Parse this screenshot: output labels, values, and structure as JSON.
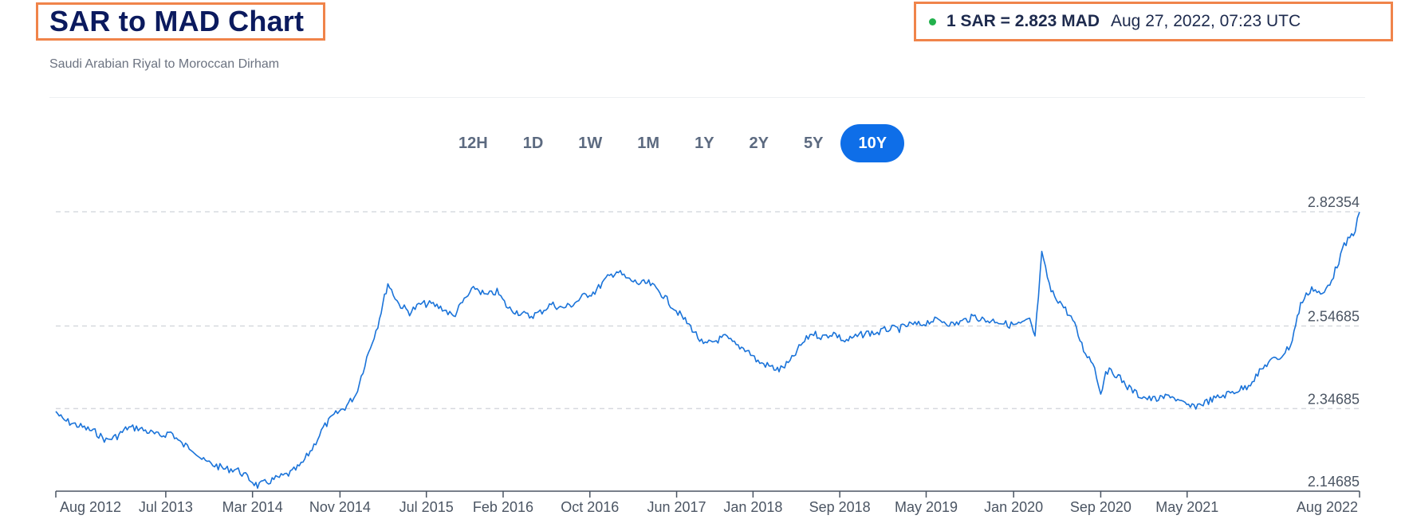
{
  "header": {
    "title": "SAR to MAD Chart",
    "subtitle": "Saudi Arabian Riyal to Moroccan Dirham"
  },
  "rate": {
    "text": "1 SAR = 2.823 MAD",
    "time": "Aug 27, 2022, 07:23 UTC",
    "status_color": "#22b14c"
  },
  "range_tabs": [
    {
      "label": "12H",
      "active": false
    },
    {
      "label": "1D",
      "active": false
    },
    {
      "label": "1W",
      "active": false
    },
    {
      "label": "1M",
      "active": false
    },
    {
      "label": "1Y",
      "active": false
    },
    {
      "label": "2Y",
      "active": false
    },
    {
      "label": "5Y",
      "active": false
    },
    {
      "label": "10Y",
      "active": true
    }
  ],
  "colors": {
    "accent": "#0e6ee8",
    "line": "#1a73d9",
    "highlight_border": "#f0844a"
  },
  "chart_data": {
    "type": "line",
    "x_domain": [
      "2012-08-27",
      "2022-08-27"
    ],
    "y_domain": [
      2.14685,
      2.82354
    ],
    "y_ticks": [
      {
        "value": 2.82354,
        "label": "2.82354"
      },
      {
        "value": 2.54685,
        "label": "2.54685"
      },
      {
        "value": 2.34685,
        "label": "2.34685"
      },
      {
        "value": 2.14685,
        "label": "2.14685"
      }
    ],
    "x_ticks": [
      {
        "date": "2012-08-27",
        "label": "Aug 2012"
      },
      {
        "date": "2013-07-01",
        "label": "Jul 2013"
      },
      {
        "date": "2014-03-01",
        "label": "Mar 2014"
      },
      {
        "date": "2014-11-01",
        "label": "Nov 2014"
      },
      {
        "date": "2015-07-01",
        "label": "Jul 2015"
      },
      {
        "date": "2016-02-01",
        "label": "Feb 2016"
      },
      {
        "date": "2016-10-01",
        "label": "Oct 2016"
      },
      {
        "date": "2017-06-01",
        "label": "Jun 2017"
      },
      {
        "date": "2018-01-01",
        "label": "Jan 2018"
      },
      {
        "date": "2018-09-01",
        "label": "Sep 2018"
      },
      {
        "date": "2019-05-01",
        "label": "May 2019"
      },
      {
        "date": "2020-01-01",
        "label": "Jan 2020"
      },
      {
        "date": "2020-09-01",
        "label": "Sep 2020"
      },
      {
        "date": "2021-05-01",
        "label": "May 2021"
      },
      {
        "date": "2022-08-27",
        "label": "Aug 2022"
      }
    ],
    "series": [
      {
        "points": [
          [
            "2012-08-27",
            2.34
          ],
          [
            "2012-09-15",
            2.32
          ],
          [
            "2012-10-15",
            2.31
          ],
          [
            "2012-11-15",
            2.3
          ],
          [
            "2012-12-15",
            2.29
          ],
          [
            "2013-01-15",
            2.27
          ],
          [
            "2013-02-15",
            2.28
          ],
          [
            "2013-03-15",
            2.3
          ],
          [
            "2013-04-15",
            2.3
          ],
          [
            "2013-05-15",
            2.29
          ],
          [
            "2013-06-15",
            2.28
          ],
          [
            "2013-07-15",
            2.29
          ],
          [
            "2013-08-15",
            2.26
          ],
          [
            "2013-09-15",
            2.25
          ],
          [
            "2013-10-15",
            2.22
          ],
          [
            "2013-11-15",
            2.21
          ],
          [
            "2013-12-15",
            2.2
          ],
          [
            "2014-01-15",
            2.2
          ],
          [
            "2014-02-15",
            2.18
          ],
          [
            "2014-03-15",
            2.16
          ],
          [
            "2014-04-15",
            2.17
          ],
          [
            "2014-05-15",
            2.18
          ],
          [
            "2014-06-15",
            2.19
          ],
          [
            "2014-07-15",
            2.21
          ],
          [
            "2014-08-15",
            2.25
          ],
          [
            "2014-09-15",
            2.3
          ],
          [
            "2014-10-15",
            2.33
          ],
          [
            "2014-11-15",
            2.35
          ],
          [
            "2014-12-15",
            2.38
          ],
          [
            "2015-01-15",
            2.47
          ],
          [
            "2015-02-15",
            2.55
          ],
          [
            "2015-03-15",
            2.65
          ],
          [
            "2015-04-15",
            2.6
          ],
          [
            "2015-05-15",
            2.58
          ],
          [
            "2015-06-15",
            2.6
          ],
          [
            "2015-07-15",
            2.6
          ],
          [
            "2015-08-15",
            2.59
          ],
          [
            "2015-09-15",
            2.57
          ],
          [
            "2015-10-15",
            2.61
          ],
          [
            "2015-11-15",
            2.64
          ],
          [
            "2015-12-15",
            2.62
          ],
          [
            "2016-01-15",
            2.63
          ],
          [
            "2016-02-15",
            2.59
          ],
          [
            "2016-03-15",
            2.58
          ],
          [
            "2016-04-15",
            2.57
          ],
          [
            "2016-05-15",
            2.58
          ],
          [
            "2016-06-15",
            2.6
          ],
          [
            "2016-07-15",
            2.59
          ],
          [
            "2016-08-15",
            2.6
          ],
          [
            "2016-09-15",
            2.62
          ],
          [
            "2016-10-15",
            2.63
          ],
          [
            "2016-11-15",
            2.66
          ],
          [
            "2016-12-15",
            2.68
          ],
          [
            "2017-01-15",
            2.66
          ],
          [
            "2017-02-15",
            2.65
          ],
          [
            "2017-03-15",
            2.65
          ],
          [
            "2017-04-15",
            2.63
          ],
          [
            "2017-05-15",
            2.6
          ],
          [
            "2017-06-15",
            2.57
          ],
          [
            "2017-07-15",
            2.54
          ],
          [
            "2017-08-15",
            2.5
          ],
          [
            "2017-09-15",
            2.51
          ],
          [
            "2017-10-15",
            2.52
          ],
          [
            "2017-11-15",
            2.5
          ],
          [
            "2017-12-15",
            2.49
          ],
          [
            "2018-01-15",
            2.46
          ],
          [
            "2018-02-15",
            2.45
          ],
          [
            "2018-03-15",
            2.44
          ],
          [
            "2018-04-15",
            2.46
          ],
          [
            "2018-05-15",
            2.5
          ],
          [
            "2018-06-15",
            2.53
          ],
          [
            "2018-07-15",
            2.52
          ],
          [
            "2018-08-15",
            2.53
          ],
          [
            "2018-09-15",
            2.51
          ],
          [
            "2018-10-15",
            2.52
          ],
          [
            "2018-11-15",
            2.53
          ],
          [
            "2018-12-15",
            2.53
          ],
          [
            "2019-01-15",
            2.54
          ],
          [
            "2019-02-15",
            2.54
          ],
          [
            "2019-03-15",
            2.55
          ],
          [
            "2019-04-15",
            2.55
          ],
          [
            "2019-05-15",
            2.56
          ],
          [
            "2019-06-15",
            2.56
          ],
          [
            "2019-07-15",
            2.55
          ],
          [
            "2019-08-15",
            2.56
          ],
          [
            "2019-09-15",
            2.57
          ],
          [
            "2019-10-15",
            2.56
          ],
          [
            "2019-11-15",
            2.56
          ],
          [
            "2019-12-15",
            2.55
          ],
          [
            "2020-01-15",
            2.55
          ],
          [
            "2020-02-15",
            2.56
          ],
          [
            "2020-03-01",
            2.52
          ],
          [
            "2020-03-20",
            2.72
          ],
          [
            "2020-04-15",
            2.63
          ],
          [
            "2020-05-15",
            2.6
          ],
          [
            "2020-06-15",
            2.56
          ],
          [
            "2020-07-15",
            2.49
          ],
          [
            "2020-08-15",
            2.45
          ],
          [
            "2020-09-01",
            2.38
          ],
          [
            "2020-09-15",
            2.44
          ],
          [
            "2020-10-15",
            2.43
          ],
          [
            "2020-11-15",
            2.4
          ],
          [
            "2020-12-15",
            2.38
          ],
          [
            "2021-01-15",
            2.37
          ],
          [
            "2021-02-15",
            2.37
          ],
          [
            "2021-03-15",
            2.38
          ],
          [
            "2021-04-15",
            2.36
          ],
          [
            "2021-05-15",
            2.35
          ],
          [
            "2021-06-15",
            2.36
          ],
          [
            "2021-07-15",
            2.37
          ],
          [
            "2021-08-15",
            2.38
          ],
          [
            "2021-09-15",
            2.39
          ],
          [
            "2021-10-15",
            2.4
          ],
          [
            "2021-11-15",
            2.43
          ],
          [
            "2021-12-15",
            2.46
          ],
          [
            "2022-01-15",
            2.47
          ],
          [
            "2022-02-15",
            2.5
          ],
          [
            "2022-03-15",
            2.6
          ],
          [
            "2022-04-15",
            2.64
          ],
          [
            "2022-05-15",
            2.62
          ],
          [
            "2022-06-15",
            2.67
          ],
          [
            "2022-07-15",
            2.74
          ],
          [
            "2022-08-15",
            2.78
          ],
          [
            "2022-08-27",
            2.823
          ]
        ]
      }
    ],
    "grid": true,
    "legend": "none"
  }
}
